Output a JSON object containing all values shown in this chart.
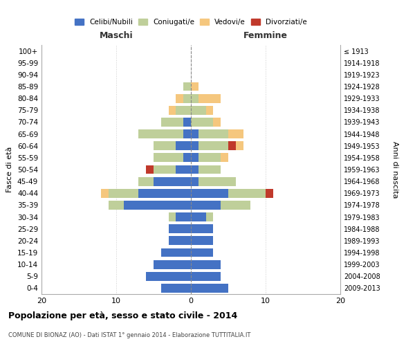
{
  "age_groups": [
    "0-4",
    "5-9",
    "10-14",
    "15-19",
    "20-24",
    "25-29",
    "30-34",
    "35-39",
    "40-44",
    "45-49",
    "50-54",
    "55-59",
    "60-64",
    "65-69",
    "70-74",
    "75-79",
    "80-84",
    "85-89",
    "90-94",
    "95-99",
    "100+"
  ],
  "birth_years": [
    "2009-2013",
    "2004-2008",
    "1999-2003",
    "1994-1998",
    "1989-1993",
    "1984-1988",
    "1979-1983",
    "1974-1978",
    "1969-1973",
    "1964-1968",
    "1959-1963",
    "1954-1958",
    "1949-1953",
    "1944-1948",
    "1939-1943",
    "1934-1938",
    "1929-1933",
    "1924-1928",
    "1919-1923",
    "1914-1918",
    "≤ 1913"
  ],
  "maschi": {
    "celibi": [
      4,
      6,
      5,
      4,
      3,
      3,
      2,
      9,
      7,
      5,
      2,
      1,
      2,
      1,
      1,
      0,
      0,
      0,
      0,
      0,
      0
    ],
    "coniugati": [
      0,
      0,
      0,
      0,
      0,
      0,
      1,
      2,
      4,
      2,
      3,
      4,
      3,
      6,
      3,
      2,
      1,
      1,
      0,
      0,
      0
    ],
    "vedovi": [
      0,
      0,
      0,
      0,
      0,
      0,
      0,
      0,
      1,
      0,
      0,
      0,
      0,
      0,
      0,
      1,
      1,
      0,
      0,
      0,
      0
    ],
    "divorziati": [
      0,
      0,
      0,
      0,
      0,
      0,
      0,
      0,
      0,
      0,
      1,
      0,
      0,
      0,
      0,
      0,
      0,
      0,
      0,
      0,
      0
    ]
  },
  "femmine": {
    "nubili": [
      5,
      4,
      4,
      3,
      3,
      3,
      2,
      4,
      5,
      1,
      1,
      1,
      1,
      1,
      0,
      0,
      0,
      0,
      0,
      0,
      0
    ],
    "coniugate": [
      0,
      0,
      0,
      0,
      0,
      0,
      1,
      4,
      5,
      5,
      3,
      3,
      4,
      4,
      3,
      2,
      1,
      0,
      0,
      0,
      0
    ],
    "vedove": [
      0,
      0,
      0,
      0,
      0,
      0,
      0,
      0,
      0,
      0,
      0,
      1,
      1,
      2,
      1,
      1,
      3,
      1,
      0,
      0,
      0
    ],
    "divorziate": [
      0,
      0,
      0,
      0,
      0,
      0,
      0,
      0,
      1,
      0,
      0,
      0,
      1,
      0,
      0,
      0,
      0,
      0,
      0,
      0,
      0
    ]
  },
  "colors": {
    "celibi_nubili": "#4472C4",
    "coniugati": "#BFCF9A",
    "vedovi": "#F5C77E",
    "divorziati": "#C0392B"
  },
  "xlim": [
    -20,
    20
  ],
  "xticks": [
    -20,
    -10,
    0,
    10,
    20
  ],
  "xticklabels": [
    "20",
    "10",
    "0",
    "10",
    "20"
  ],
  "title": "Popolazione per età, sesso e stato civile - 2014",
  "subtitle": "COMUNE DI BIONAZ (AO) - Dati ISTAT 1° gennaio 2014 - Elaborazione TUTTITALIA.IT",
  "ylabel_left": "Fasce di età",
  "ylabel_right": "Anni di nascita",
  "label_maschi": "Maschi",
  "label_femmine": "Femmine",
  "legend_labels": [
    "Celibi/Nubili",
    "Coniugati/e",
    "Vedovi/e",
    "Divorziati/e"
  ]
}
